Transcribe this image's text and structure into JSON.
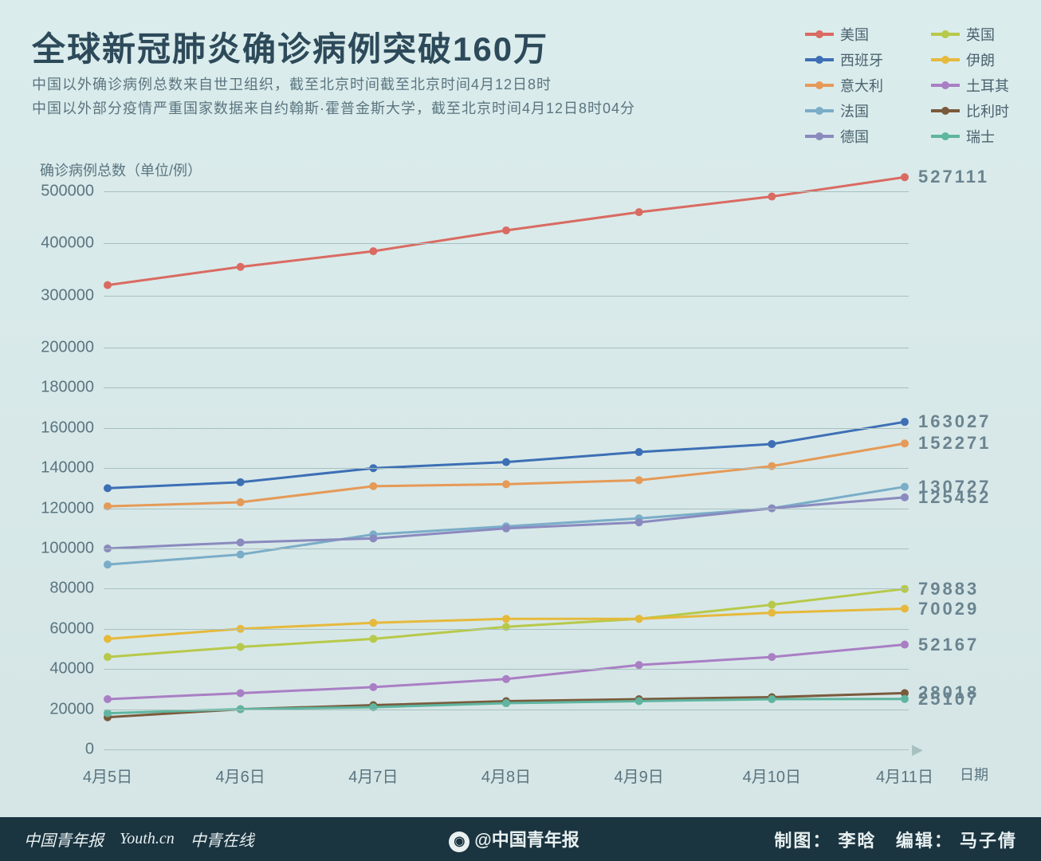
{
  "title": "全球新冠肺炎确诊病例突破160万",
  "subtitle1": "中国以外确诊病例总数来自世卫组织，截至北京时间截至北京时间4月12日8时",
  "subtitle2": "中国以外部分疫情严重国家数据来自约翰斯·霍普金斯大学，截至北京时间4月12日8时04分",
  "y_axis_title": "确诊病例总数（单位/例）",
  "x_axis_title": "日期",
  "background_color": "#d8e8e8",
  "grid_color": "#a8c0c0",
  "text_color": "#5a7580",
  "title_color": "#2d4a5a",
  "title_fontsize": 42,
  "subtitle_fontsize": 18,
  "tick_fontsize": 20,
  "endlabel_fontsize": 22,
  "line_width": 3,
  "marker_radius": 5,
  "chart": {
    "x_categories": [
      "4月5日",
      "4月6日",
      "4月7日",
      "4月8日",
      "4月9日",
      "4月10日",
      "4月11日"
    ],
    "y_ticks": [
      0,
      20000,
      40000,
      60000,
      80000,
      100000,
      120000,
      140000,
      160000,
      180000,
      200000,
      300000,
      400000,
      500000
    ],
    "y_break_low": 200000,
    "y_break_high": 500000,
    "series": [
      {
        "name": "美国",
        "color": "#d96b62",
        "values": [
          320000,
          355000,
          385000,
          425000,
          460000,
          490000,
          527111
        ]
      },
      {
        "name": "西班牙",
        "color": "#3d6fb5",
        "values": [
          130000,
          133000,
          140000,
          143000,
          148000,
          152000,
          163027
        ]
      },
      {
        "name": "意大利",
        "color": "#e59a57",
        "values": [
          121000,
          123000,
          131000,
          132000,
          134000,
          141000,
          152271
        ]
      },
      {
        "name": "法国",
        "color": "#7aadc8",
        "values": [
          92000,
          97000,
          107000,
          111000,
          115000,
          120000,
          130727
        ]
      },
      {
        "name": "德国",
        "color": "#8a8abf",
        "values": [
          100000,
          103000,
          105000,
          110000,
          113000,
          120000,
          125452
        ]
      },
      {
        "name": "英国",
        "color": "#b7c94a",
        "values": [
          46000,
          51000,
          55000,
          61000,
          65000,
          72000,
          79883
        ]
      },
      {
        "name": "伊朗",
        "color": "#e6b93c",
        "values": [
          55000,
          60000,
          63000,
          65000,
          65000,
          68000,
          70029
        ]
      },
      {
        "name": "土耳其",
        "color": "#a97fc4",
        "values": [
          25000,
          28000,
          31000,
          35000,
          42000,
          46000,
          52167
        ]
      },
      {
        "name": "比利时",
        "color": "#7a5a3c",
        "values": [
          16000,
          20000,
          22000,
          24000,
          25000,
          26000,
          28018
        ]
      },
      {
        "name": "瑞士",
        "color": "#5fb5a0",
        "values": [
          18000,
          20000,
          21000,
          23000,
          24000,
          25000,
          25107
        ]
      }
    ],
    "legend_order_left": [
      "美国",
      "西班牙",
      "意大利",
      "法国",
      "德国"
    ],
    "legend_order_right": [
      "英国",
      "伊朗",
      "土耳其",
      "比利时",
      "瑞士"
    ]
  },
  "footer": {
    "brands": [
      "中国青年报",
      "Youth.cn",
      "中青在线"
    ],
    "center_prefix": "@",
    "center": "中国青年报",
    "credit_graphic_label": "制图：",
    "credit_graphic_name": "李晗",
    "credit_editor_label": "编辑：",
    "credit_editor_name": "马子倩",
    "bg": "#1a3440",
    "fg": "#e8f0f0"
  }
}
